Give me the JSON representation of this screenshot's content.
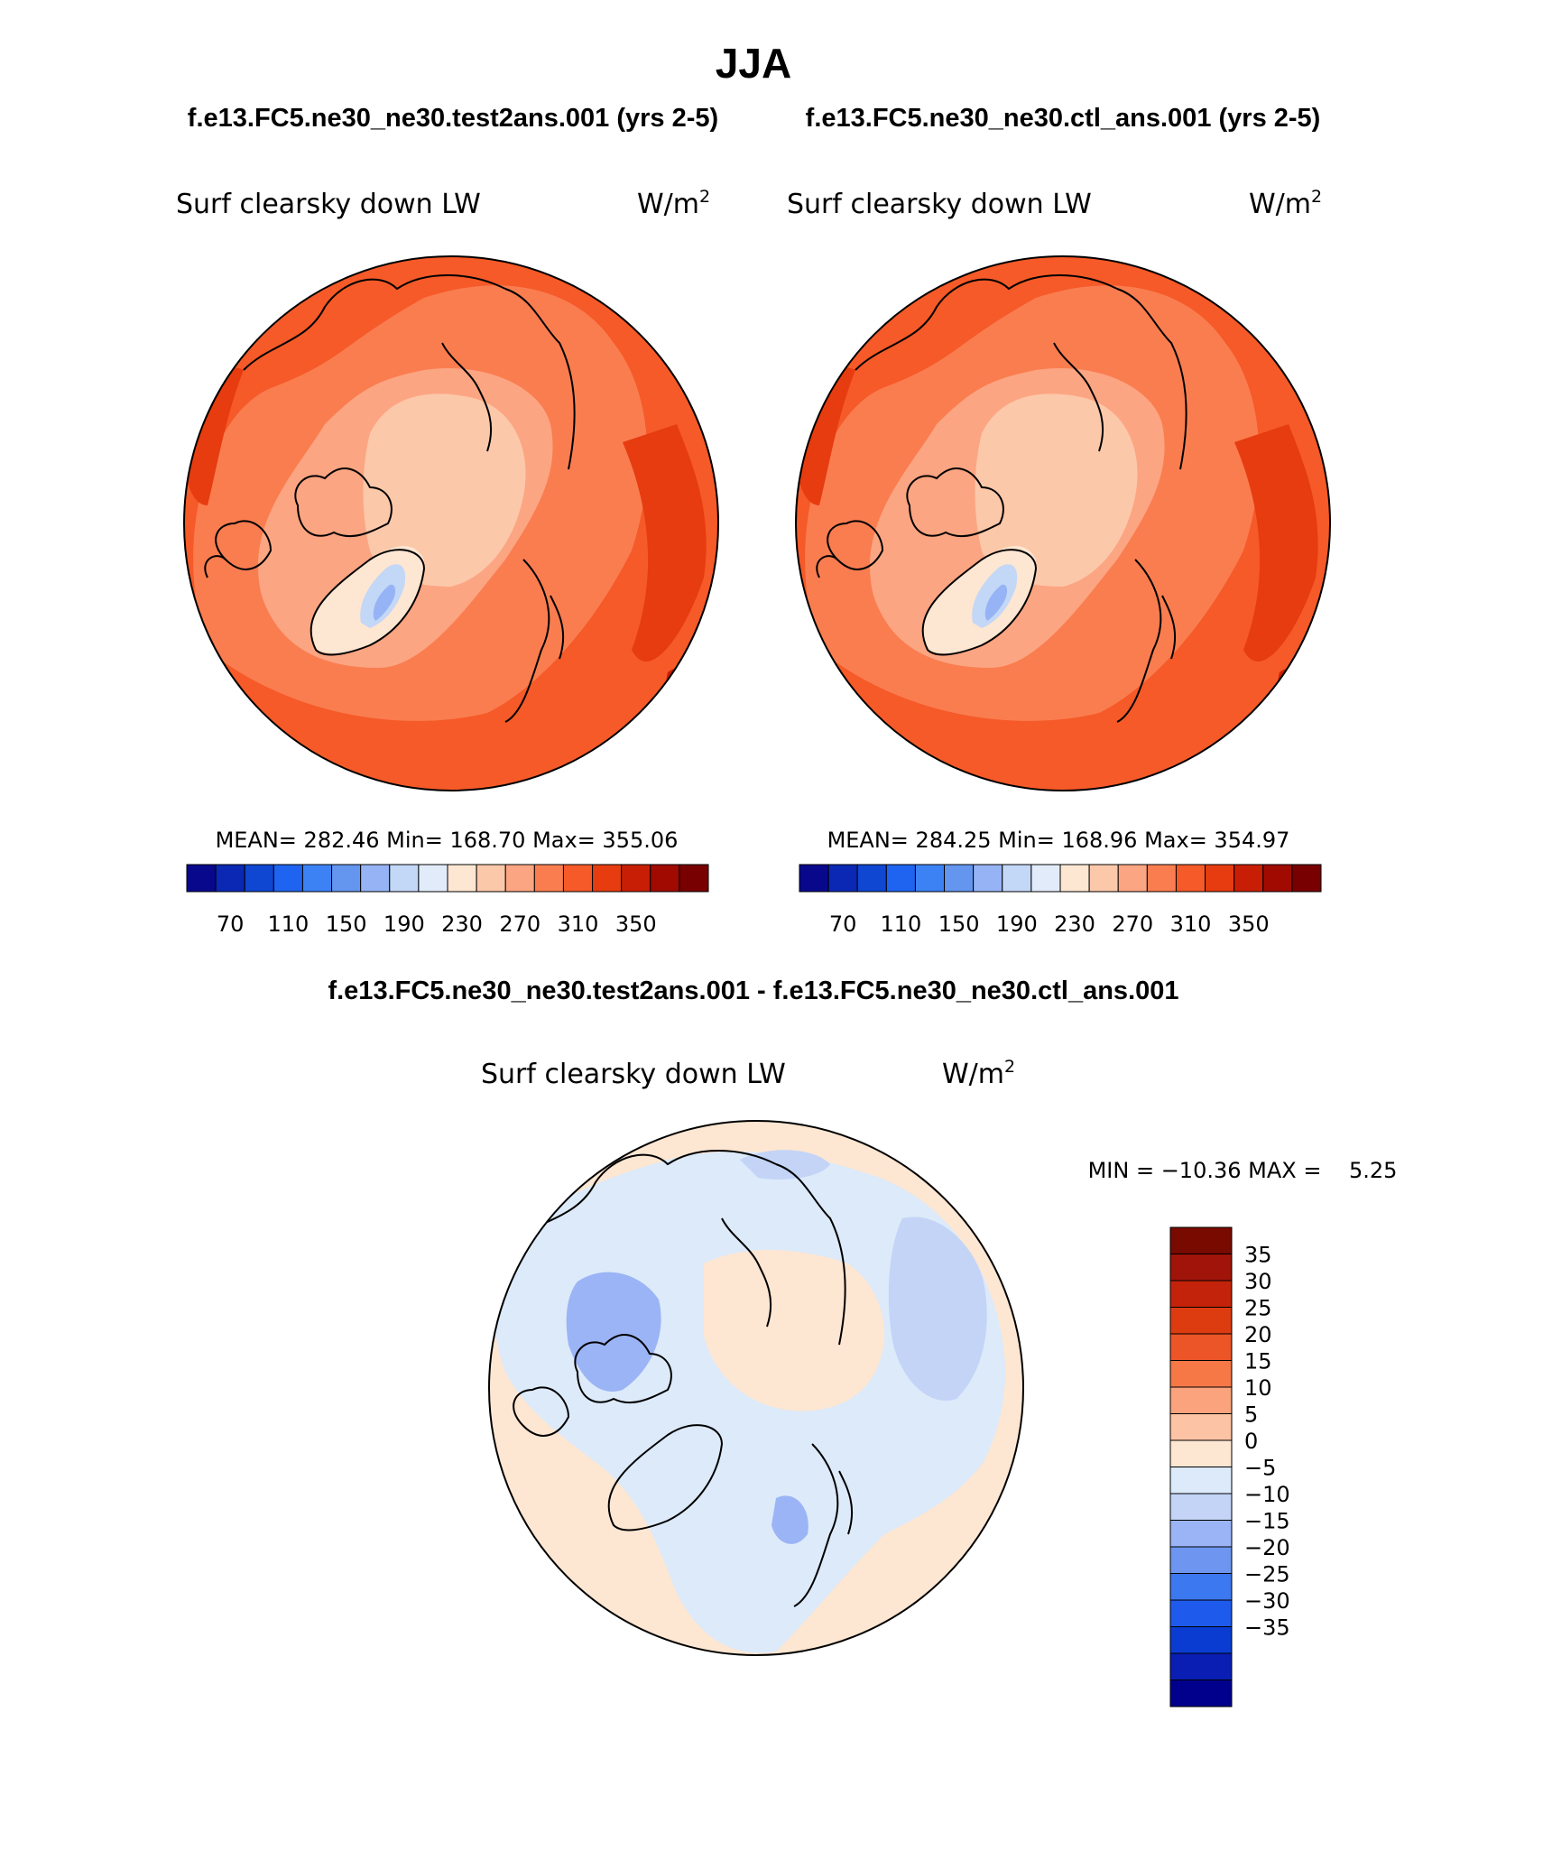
{
  "page_title": "JJA",
  "colors": {
    "abs_palette": [
      "#08088c",
      "#0a28b4",
      "#0f46d2",
      "#1e64f0",
      "#3c82f5",
      "#6496f0",
      "#96b4f5",
      "#c3d7f7",
      "#e1ebfa",
      "#fde6d2",
      "#fcc8aa",
      "#fca582",
      "#fa7d50",
      "#f55a28",
      "#e63c0f",
      "#c81e05",
      "#a00a00",
      "#780000"
    ],
    "diff_palette": [
      "#00008c",
      "#0a1eb4",
      "#0a3cd2",
      "#1e5aeb",
      "#3c78f0",
      "#6e96f0",
      "#9bb4f5",
      "#c3d4f7",
      "#dceafa",
      "#fde6d2",
      "#fcc3a5",
      "#faa37d",
      "#f57846",
      "#eb5528",
      "#dc3c0f",
      "#c3230a",
      "#a0140a",
      "#780a00"
    ],
    "coastline": "#000000"
  },
  "panels": [
    {
      "case_title": "f.e13.FC5.ne30_ne30.test2ans.001 (yrs 2-5)",
      "var_name": "Surf clearsky down LW",
      "units_base": "W/m",
      "units_exp": "2",
      "stats_text": "MEAN= 282.46   Min= 168.70   Max= 355.06",
      "colorbar_ticks": [
        "70",
        "110",
        "150",
        "190",
        "230",
        "270",
        "310",
        "350"
      ]
    },
    {
      "case_title": "f.e13.FC5.ne30_ne30.ctl_ans.001 (yrs 2-5)",
      "var_name": "Surf clearsky down LW",
      "units_base": "W/m",
      "units_exp": "2",
      "stats_text": "MEAN= 284.25   Min= 168.96   Max= 354.97",
      "colorbar_ticks": [
        "70",
        "110",
        "150",
        "190",
        "230",
        "270",
        "310",
        "350"
      ]
    },
    {
      "case_title": "f.e13.FC5.ne30_ne30.test2ans.001 - f.e13.FC5.ne30_ne30.ctl_ans.001",
      "var_name": "Surf clearsky down LW",
      "units_base": "W/m",
      "units_exp": "2",
      "stats_text": "MIN = −10.36 MAX =    5.25",
      "colorbar_ticks": [
        "35",
        "30",
        "25",
        "20",
        "15",
        "10",
        "5",
        "0",
        "−5",
        "−10",
        "−15",
        "−20",
        "−25",
        "−30",
        "−35"
      ]
    }
  ],
  "chart_data": [
    {
      "type": "heatmap",
      "projection": "north polar stereographic",
      "title": "Surf clearsky down LW",
      "units": "W/m2",
      "mean": 282.46,
      "min": 168.7,
      "max": 355.06,
      "levels": [
        70,
        90,
        110,
        130,
        150,
        170,
        190,
        210,
        230,
        250,
        270,
        290,
        310,
        330,
        350
      ],
      "fields": {
        "central_arctic": 235,
        "greenland_interior": 185,
        "greenland_core": 170,
        "arctic_ring": 265,
        "midlatitude_edge": 320,
        "hot_extremes": 350
      }
    },
    {
      "type": "heatmap",
      "projection": "north polar stereographic",
      "title": "Surf clearsky down LW",
      "units": "W/m2",
      "mean": 284.25,
      "min": 168.96,
      "max": 354.97,
      "levels": [
        70,
        90,
        110,
        130,
        150,
        170,
        190,
        210,
        230,
        250,
        270,
        290,
        310,
        330,
        350
      ],
      "fields": {
        "central_arctic": 238,
        "greenland_interior": 185,
        "greenland_core": 172,
        "arctic_ring": 268,
        "midlatitude_edge": 322,
        "hot_extremes": 350
      }
    },
    {
      "type": "heatmap",
      "projection": "north polar stereographic",
      "title": "Surf clearsky down LW (difference)",
      "units": "W/m2",
      "min": -10.36,
      "max": 5.25,
      "levels": [
        -35,
        -30,
        -25,
        -20,
        -15,
        -10,
        -5,
        0,
        5,
        10,
        15,
        20,
        25,
        30,
        35
      ],
      "fields": {
        "background": 2,
        "negative_regions": -3,
        "strong_negative": -7
      }
    }
  ]
}
